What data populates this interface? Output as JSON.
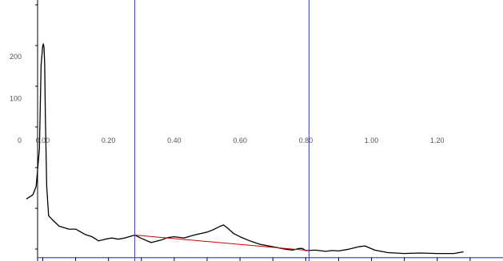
{
  "chart_data": {
    "type": "line",
    "title": "",
    "xlabel": "",
    "ylabel": "",
    "x_ticks": [
      0.0,
      0.2,
      0.4,
      0.6,
      0.8,
      1.0,
      1.2
    ],
    "x_tick_labels": [
      "0.00",
      "0.20",
      "0.40",
      "0.60",
      "0.80",
      "1.00",
      "1.20"
    ],
    "y_ticks": [
      0,
      100,
      200
    ],
    "y_tick_labels": [
      "0",
      "100",
      "200"
    ],
    "xlim": [
      -0.13,
      1.4
    ],
    "ylim": [
      -288,
      335
    ],
    "grid": false,
    "cursor_lines_x": [
      0.28,
      0.81
    ],
    "baseline_y": -280,
    "series": [
      {
        "color": "#000000",
        "x": [
          -0.05,
          -0.03,
          -0.02,
          -0.01,
          -0.005,
          0.0,
          0.002,
          0.004,
          0.006,
          0.008,
          0.012,
          0.018,
          0.03,
          0.05,
          0.08,
          0.1,
          0.13,
          0.15,
          0.17,
          0.19,
          0.21,
          0.23,
          0.25,
          0.28,
          0.3,
          0.33,
          0.36,
          0.38,
          0.4,
          0.43,
          0.46,
          0.5,
          0.52,
          0.54,
          0.55,
          0.56,
          0.58,
          0.6,
          0.63,
          0.66,
          0.7,
          0.74,
          0.76,
          0.78,
          0.79,
          0.8,
          0.83,
          0.86,
          0.88,
          0.9,
          0.93,
          0.96,
          0.98,
          1.01,
          1.05,
          1.1,
          1.15,
          1.2,
          1.25,
          1.28
        ],
        "y": [
          -140,
          -130,
          -110,
          -20,
          180,
          225,
          230,
          220,
          180,
          60,
          -110,
          -180,
          -190,
          -205,
          -212,
          -212,
          -225,
          -230,
          -240,
          -236,
          -233,
          -236,
          -233,
          -226,
          -234,
          -244,
          -238,
          -232,
          -230,
          -233,
          -226,
          -219,
          -213,
          -205,
          -202,
          -208,
          -222,
          -230,
          -240,
          -248,
          -254,
          -260,
          -262,
          -258,
          -258,
          -263,
          -262,
          -265,
          -263,
          -264,
          -260,
          -254,
          -252,
          -262,
          -268,
          -270,
          -269,
          -270,
          -270,
          -266
        ]
      },
      {
        "color": "#cc0000",
        "x": [
          0.28,
          0.81
        ],
        "y": [
          -226,
          -263
        ]
      }
    ]
  }
}
